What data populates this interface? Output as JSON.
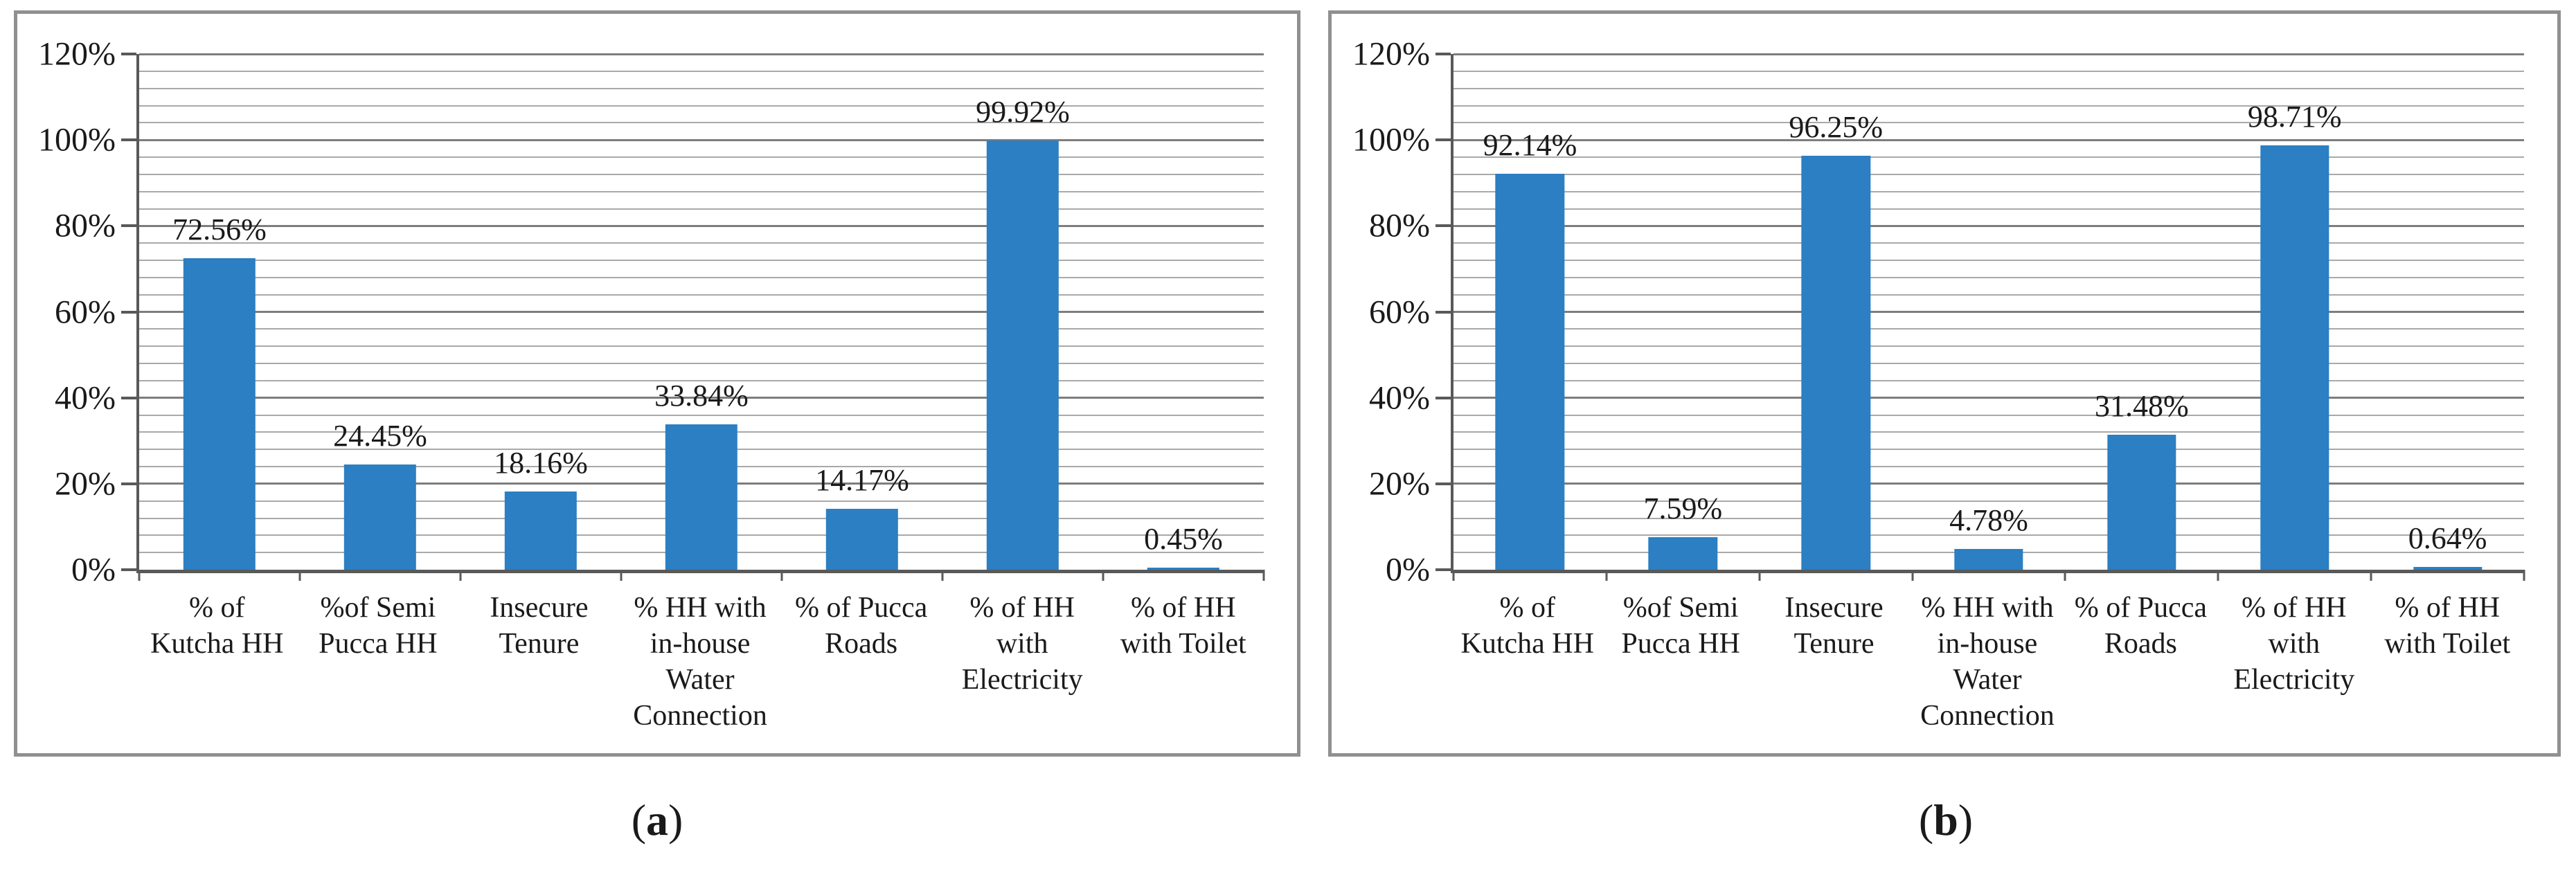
{
  "figure": {
    "captions": [
      {
        "open": "(",
        "letter": "a",
        "close": ")"
      },
      {
        "open": "(",
        "letter": "b",
        "close": ")"
      }
    ]
  },
  "colors": {
    "bar_blue": "#2b7fc2",
    "major_gridline": "#7d7d7d",
    "minor_gridline": "#a9a9a9",
    "axis": "#595959",
    "panel_border": "#909090",
    "text": "#1a1a1a"
  },
  "chart_data": [
    {
      "type": "bar",
      "panel": "a",
      "title": "",
      "xlabel": "",
      "ylabel": "",
      "legend": "none",
      "grid": "on",
      "categories": [
        "% of\nKutcha HH",
        "%of Semi\nPucca HH",
        "Insecure\nTenure",
        "% HH with\nin-house\nWater\nConnection",
        "% of Pucca\nRoads",
        "% of HH\nwith\nElectricity",
        "% of HH\nwith Toilet"
      ],
      "values": [
        72.56,
        24.45,
        18.16,
        33.84,
        14.17,
        99.92,
        0.45
      ],
      "labels": [
        "72.56%",
        "24.45%",
        "18.16%",
        "33.84%",
        "14.17%",
        "99.92%",
        "0.45%"
      ],
      "ylim": [
        0,
        120
      ],
      "y_major_step": 20,
      "y_minor_step": 4,
      "y_tick_labels": [
        "0%",
        "20%",
        "40%",
        "60%",
        "80%",
        "100%",
        "120%"
      ],
      "bar_color": "#2b7fc2"
    },
    {
      "type": "bar",
      "panel": "b",
      "title": "",
      "xlabel": "",
      "ylabel": "",
      "legend": "none",
      "grid": "on",
      "categories": [
        "% of\nKutcha HH",
        "%of Semi\nPucca HH",
        "Insecure\nTenure",
        "% HH with\nin-house\nWater\nConnection",
        "% of Pucca\nRoads",
        "% of HH\nwith\nElectricity",
        "% of HH\nwith Toilet"
      ],
      "values": [
        92.14,
        7.59,
        96.25,
        4.78,
        31.48,
        98.71,
        0.64
      ],
      "labels": [
        "92.14%",
        "7.59%",
        "96.25%",
        "4.78%",
        "31.48%",
        "98.71%",
        "0.64%"
      ],
      "ylim": [
        0,
        120
      ],
      "y_major_step": 20,
      "y_minor_step": 4,
      "y_tick_labels": [
        "0%",
        "20%",
        "40%",
        "60%",
        "80%",
        "100%",
        "120%"
      ],
      "bar_color": "#2b7fc2"
    }
  ]
}
